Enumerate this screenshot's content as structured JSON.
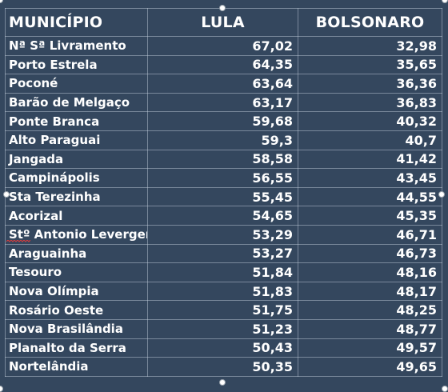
{
  "table": {
    "headers": {
      "municipio": "MUNICÍPIO",
      "lula": "LULA",
      "bolsonaro": "BOLSONARO"
    },
    "rows": [
      {
        "municipio": "Nª Sª Livramento",
        "lula": "67,02",
        "bolsonaro": "32,98"
      },
      {
        "municipio": "Porto Estrela",
        "lula": "64,35",
        "bolsonaro": "35,65"
      },
      {
        "municipio": "Poconé",
        "lula": "63,64",
        "bolsonaro": "36,36"
      },
      {
        "municipio": "Barão de Melgaço",
        "lula": "63,17",
        "bolsonaro": "36,83"
      },
      {
        "municipio": "Ponte Branca",
        "lula": "59,68",
        "bolsonaro": "40,32"
      },
      {
        "municipio": "Alto Paraguai",
        "lula": "59,3",
        "bolsonaro": "40,7"
      },
      {
        "municipio": "Jangada",
        "lula": "58,58",
        "bolsonaro": "41,42"
      },
      {
        "municipio": "Campinápolis",
        "lula": "56,55",
        "bolsonaro": "43,45"
      },
      {
        "municipio": "Sta Terezinha",
        "lula": "55,45",
        "bolsonaro": "44,55"
      },
      {
        "municipio": "Acorizal",
        "lula": "54,65",
        "bolsonaro": "45,35"
      },
      {
        "municipio": "Stº Antonio Leverger",
        "lula": "53,29",
        "bolsonaro": "46,71"
      },
      {
        "municipio": "Araguainha",
        "lula": "53,27",
        "bolsonaro": "46,73"
      },
      {
        "municipio": "Tesouro",
        "lula": "51,84",
        "bolsonaro": "48,16"
      },
      {
        "municipio": "Nova Olímpia",
        "lula": "51,83",
        "bolsonaro": "48,17"
      },
      {
        "municipio": "Rosário Oeste",
        "lula": "51,75",
        "bolsonaro": "48,25"
      },
      {
        "municipio": "Nova Brasilândia",
        "lula": "51,23",
        "bolsonaro": "48,77"
      },
      {
        "municipio": "Planalto da Serra",
        "lula": "50,43",
        "bolsonaro": "49,57"
      },
      {
        "municipio": "Nortelândia",
        "lula": "50,35",
        "bolsonaro": "49,65"
      }
    ]
  },
  "colors": {
    "background": "#34475e",
    "text": "#ffffff",
    "grid": "#cdd7e4"
  }
}
